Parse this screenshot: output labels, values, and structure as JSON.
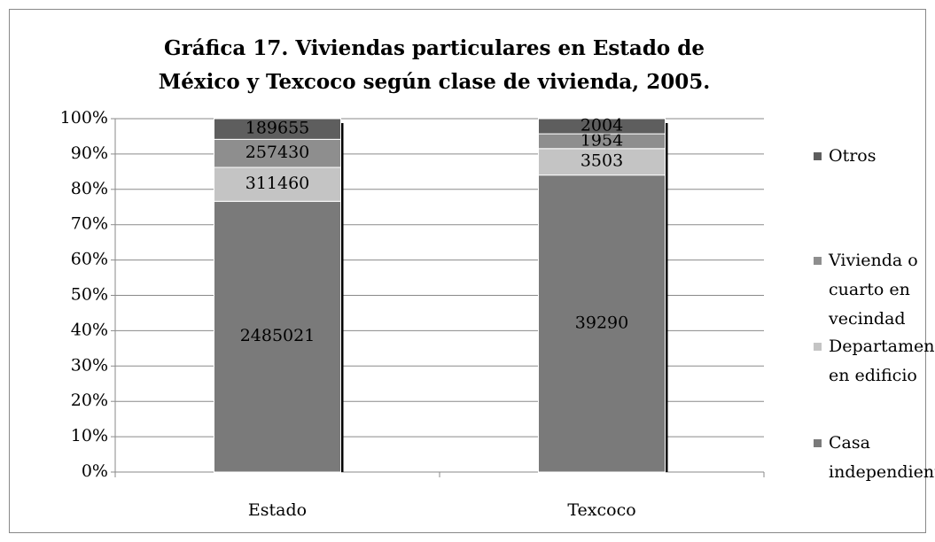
{
  "chart_data": {
    "type": "bar",
    "stacked": "percent",
    "title": "Gráfica 17. Viviendas particulares en Estado de México y Texcoco según clase de vivienda, 2005.",
    "categories": [
      "Estado",
      "Texcoco"
    ],
    "series": [
      {
        "name": "Casa independiente",
        "color": "#7a7a7a",
        "values": [
          2485021,
          39290
        ]
      },
      {
        "name": "Departamento en edificio",
        "color": "#c4c4c4",
        "values": [
          311460,
          3503
        ]
      },
      {
        "name": "Vivienda o cuarto en vecindad",
        "color": "#8e8e8e",
        "values": [
          257430,
          1954
        ]
      },
      {
        "name": "Otros",
        "color": "#5e5e5e",
        "values": [
          189655,
          2004
        ]
      }
    ],
    "ylim": [
      0,
      100
    ],
    "yticks": [
      {
        "value": 0,
        "label": "0%"
      },
      {
        "value": 10,
        "label": "10%"
      },
      {
        "value": 20,
        "label": "20%"
      },
      {
        "value": 30,
        "label": "30%"
      },
      {
        "value": 40,
        "label": "40%"
      },
      {
        "value": 50,
        "label": "50%"
      },
      {
        "value": 60,
        "label": "60%"
      },
      {
        "value": 70,
        "label": "70%"
      },
      {
        "value": 80,
        "label": "80%"
      },
      {
        "value": 90,
        "label": "90%"
      },
      {
        "value": 100,
        "label": "100%"
      }
    ],
    "grid": true,
    "legend": "right"
  }
}
